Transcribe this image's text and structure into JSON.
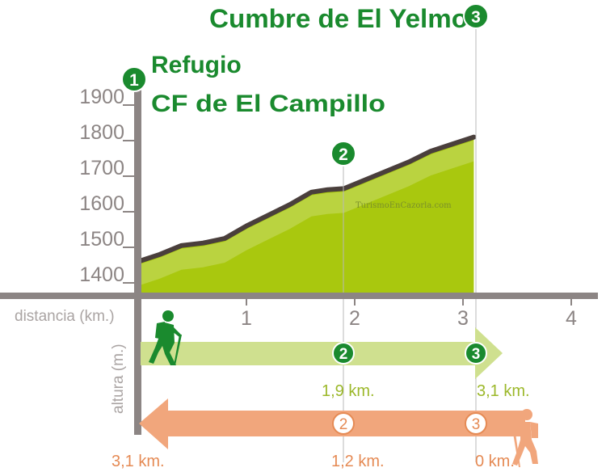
{
  "chart_data": {
    "type": "area",
    "title": "Cumbre de El Yelmo",
    "start_label_line1": "Refugio",
    "start_label_line2": "CF de El Campillo",
    "xlabel": "distancia (km.)",
    "ylabel": "altura (m.)",
    "xlim": [
      0,
      4.1
    ],
    "ylim": [
      1350,
      1950
    ],
    "x_ticks": [
      "1",
      "2",
      "3",
      "4"
    ],
    "x_tick_values": [
      1,
      2,
      3,
      4
    ],
    "y_ticks": [
      "1400",
      "1500",
      "1600",
      "1700",
      "1800",
      "1900"
    ],
    "y_tick_values": [
      1400,
      1500,
      1600,
      1700,
      1800,
      1900
    ],
    "x": [
      0,
      0.2,
      0.4,
      0.6,
      0.8,
      1.0,
      1.2,
      1.4,
      1.6,
      1.75,
      1.9,
      2.1,
      2.3,
      2.5,
      2.7,
      2.9,
      3.1
    ],
    "y": [
      1460,
      1480,
      1505,
      1512,
      1525,
      1560,
      1590,
      1620,
      1655,
      1662,
      1665,
      1690,
      1715,
      1740,
      1770,
      1790,
      1810
    ],
    "fill_color": "#a9c80e",
    "line_color": "#4a3f3c",
    "watermark": "TurismoEnCazorla.com",
    "waypoints": [
      {
        "num": "1",
        "x": 0
      },
      {
        "num": "2",
        "x": 1.9
      },
      {
        "num": "3",
        "x": 3.1
      }
    ],
    "outbound": {
      "color": "#cfe08f",
      "markers": [
        "2",
        "3"
      ],
      "marker_x": [
        1.9,
        3.1
      ],
      "label_color": "#9cb82a",
      "labels": [
        "1,9 km.",
        "3,1 km."
      ]
    },
    "return": {
      "color": "#f1a67c",
      "markers": [
        "2",
        "3"
      ],
      "marker_x": [
        1.9,
        3.1
      ],
      "label_color": "#e58a54",
      "labels": [
        "3,1 km.",
        "1,2 km.",
        "0 km."
      ]
    },
    "icons": {
      "hiker_out": "hiker-icon",
      "hiker_return": "hiker-icon"
    },
    "colors": {
      "marker_green": "#1a8a2e",
      "axis": "#8c8584",
      "return_marker_text": "#e58a54"
    }
  }
}
